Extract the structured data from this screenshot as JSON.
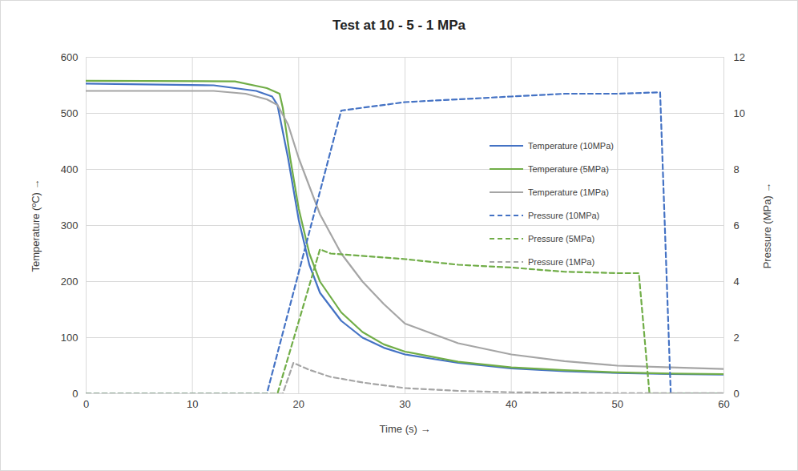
{
  "chart_data": {
    "type": "line",
    "title": "Test at 10 - 5 - 1 MPa",
    "x_label": "Time (s)",
    "y_label": "Temperature (ºC)",
    "y2_label": "Pressure (MPa)",
    "xlim": [
      0,
      60
    ],
    "xticks": [
      0,
      10,
      20,
      30,
      40,
      50,
      60
    ],
    "ylim": [
      0,
      600
    ],
    "yticks": [
      0,
      100,
      200,
      300,
      400,
      500,
      600
    ],
    "y2lim": [
      0,
      12
    ],
    "y2ticks": [
      0,
      2,
      4,
      6,
      8,
      10,
      12
    ],
    "grid": true,
    "legend": "right",
    "series": [
      {
        "name": "Temperature (10MPa)",
        "color": "#4472c4",
        "line_style": "solid",
        "x": [
          0,
          12,
          16,
          17.5,
          18,
          19,
          20,
          21,
          22,
          24,
          26,
          28,
          30,
          35,
          40,
          45,
          50,
          55,
          60
        ],
        "values": [
          553,
          550,
          540,
          530,
          515,
          420,
          310,
          230,
          180,
          130,
          100,
          82,
          70,
          55,
          45,
          40,
          37,
          35,
          34
        ]
      },
      {
        "name": "Temperature (5MPa)",
        "color": "#70ad47",
        "line_style": "solid",
        "x": [
          0,
          14,
          17,
          18.2,
          18.5,
          19.2,
          20,
          21,
          22,
          24,
          26,
          28,
          30,
          35,
          40,
          45,
          50,
          55,
          60
        ],
        "values": [
          558,
          557,
          545,
          535,
          510,
          420,
          330,
          250,
          200,
          145,
          110,
          88,
          75,
          57,
          47,
          42,
          38,
          36,
          35
        ]
      },
      {
        "name": "Temperature (1MPa)",
        "color": "#a5a5a5",
        "line_style": "solid",
        "x": [
          0,
          12,
          15,
          17,
          18,
          19,
          20,
          21,
          22,
          24,
          26,
          28,
          30,
          35,
          40,
          45,
          50,
          55,
          60
        ],
        "values": [
          540,
          540,
          535,
          525,
          515,
          480,
          420,
          370,
          320,
          250,
          200,
          160,
          125,
          90,
          70,
          58,
          50,
          47,
          44
        ]
      },
      {
        "name": "Pressure (10MPa)",
        "color": "#4472c4",
        "line_style": "dashed",
        "axis": "y2",
        "x": [
          0,
          17,
          24,
          30,
          35,
          40,
          45,
          50,
          54,
          55,
          60
        ],
        "values": [
          0,
          0,
          10.1,
          10.4,
          10.5,
          10.6,
          10.7,
          10.7,
          10.75,
          0,
          0
        ]
      },
      {
        "name": "Pressure (5MPa)",
        "color": "#70ad47",
        "line_style": "dashed",
        "axis": "y2",
        "x": [
          0,
          18,
          22,
          23,
          30,
          35,
          40,
          45,
          50,
          52,
          53,
          60
        ],
        "values": [
          0,
          0,
          5.15,
          5.0,
          4.8,
          4.6,
          4.5,
          4.35,
          4.3,
          4.3,
          0,
          0
        ]
      },
      {
        "name": "Pressure (1MPa)",
        "color": "#a5a5a5",
        "line_style": "dashed",
        "axis": "y2",
        "x": [
          0,
          18.5,
          19.5,
          21,
          23,
          26,
          30,
          35,
          40,
          50,
          60
        ],
        "values": [
          0,
          0,
          1.1,
          0.85,
          0.6,
          0.4,
          0.2,
          0.1,
          0.05,
          0.02,
          0.02
        ]
      }
    ]
  }
}
